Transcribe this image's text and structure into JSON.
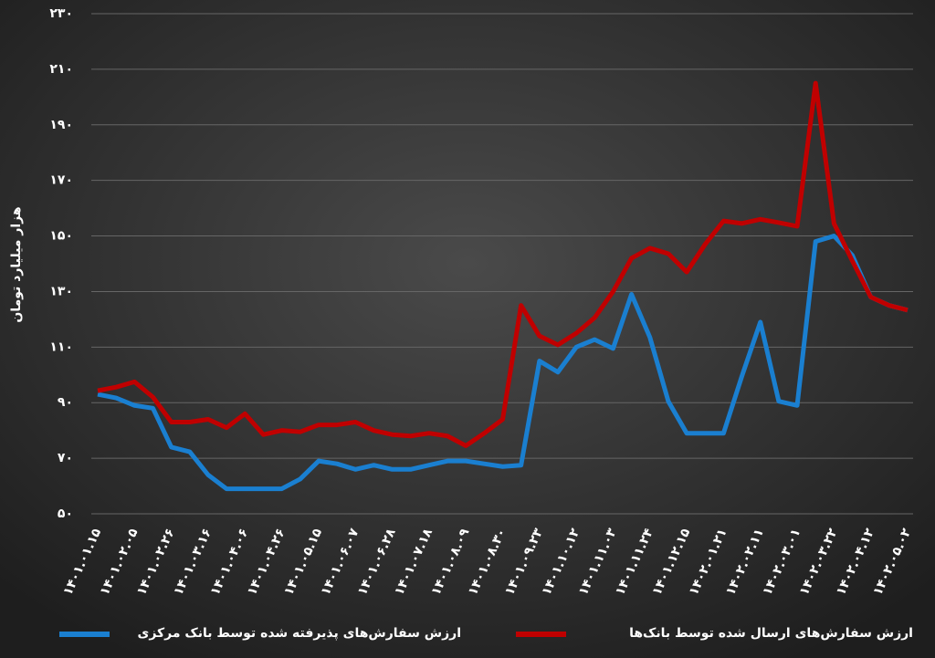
{
  "chart_data": {
    "type": "line",
    "y_label": "هزار میلیارد تومان",
    "categories": [
      "۱۴۰۱.۰۱.۱۵",
      null,
      "۱۴۰۱.۰۲.۰۵",
      null,
      "۱۴۰۱.۰۲.۲۶",
      null,
      "۱۴۰۱.۰۳.۱۶",
      null,
      "۱۴۰۱.۰۴.۰۶",
      null,
      "۱۴۰۱.۰۴.۲۶",
      null,
      "۱۴۰۱.۰۵.۱۵",
      null,
      "۱۴۰۱.۰۶.۰۷",
      null,
      "۱۴۰۱.۰۶.۲۸",
      null,
      "۱۴۰۱.۰۷.۱۸",
      null,
      "۱۴۰۱.۰۸.۰۹",
      null,
      "۱۴۰۱.۰۸.۳۰",
      null,
      "۱۴۰۱.۰۹.۲۳",
      null,
      "۱۴۰۱.۱۰.۱۲",
      null,
      "۱۴۰۱.۱۱.۰۳",
      null,
      "۱۴۰۱.۱۱.۲۴",
      null,
      "۱۴۰۱.۱۲.۱۵",
      null,
      "۱۴۰۲.۰۱.۲۱",
      null,
      "۱۴۰۲.۰۲.۱۱",
      null,
      "۱۴۰۲.۰۳.۰۱",
      null,
      "۱۴۰۲.۰۳.۲۲",
      null,
      "۱۴۰۲.۰۴.۱۲",
      null,
      "۱۴۰۲.۰۵.۰۲"
    ],
    "series": [
      {
        "name": "ارزش سفارش‌های پذیرفته شده توسط بانک مرکزی",
        "color": "#1a7fd0",
        "values": [
          93,
          91.7,
          89,
          88,
          74,
          72.3,
          64,
          59,
          59,
          59,
          59,
          62.5,
          69,
          68,
          66,
          67.5,
          66,
          66,
          67.5,
          69,
          69,
          68,
          67,
          67.5,
          105,
          101,
          110,
          112.7,
          109.5,
          129,
          113.5,
          90.5,
          79,
          79,
          79,
          99.6,
          119,
          90.5,
          89,
          148,
          150,
          143,
          128,
          125,
          123.3
        ]
      },
      {
        "name": "ارزش سفارش‌های ارسال شده توسط بانک‌ها",
        "color": "#c00000",
        "values": [
          94.3,
          95.6,
          97.5,
          92,
          83,
          83,
          84,
          81,
          86,
          78.5,
          80,
          79.5,
          82,
          82,
          83,
          80,
          78.5,
          78,
          79,
          78,
          74.5,
          79,
          84,
          125,
          114,
          110.8,
          115,
          120.6,
          130,
          142,
          145.6,
          143.6,
          137,
          147,
          155.4,
          154.5,
          156,
          154.8,
          153.5,
          205,
          154.5,
          141,
          128,
          125,
          123.3
        ]
      }
    ],
    "ylim": [
      50,
      230
    ],
    "yticks": [
      {
        "value": 50,
        "label": "۵۰"
      },
      {
        "value": 70,
        "label": "۷۰"
      },
      {
        "value": 90,
        "label": "۹۰"
      },
      {
        "value": 110,
        "label": "۱۱۰"
      },
      {
        "value": 130,
        "label": "۱۳۰"
      },
      {
        "value": 150,
        "label": "۱۵۰"
      },
      {
        "value": 170,
        "label": "۱۷۰"
      },
      {
        "value": 190,
        "label": "۱۹۰"
      },
      {
        "value": 210,
        "label": "۲۱۰"
      },
      {
        "value": 230,
        "label": "۲۳۰"
      }
    ],
    "grid": true
  }
}
